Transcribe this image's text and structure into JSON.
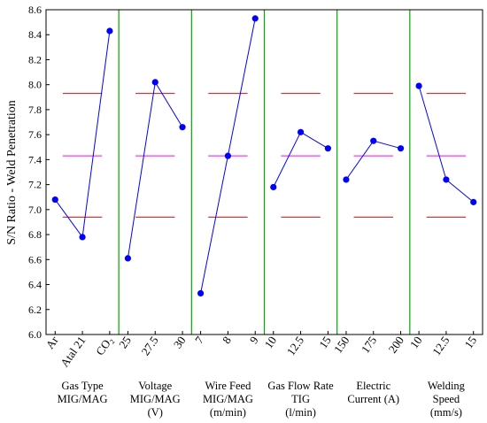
{
  "chart_data": {
    "type": "line",
    "ylabel": "S/N Ratio - Weld Penetration",
    "ylim": [
      6.0,
      8.6
    ],
    "yticks": [
      "6.0",
      "6.2",
      "6.4",
      "6.6",
      "6.8",
      "7.0",
      "7.2",
      "7.4",
      "7.6",
      "7.8",
      "8.0",
      "8.2",
      "8.4",
      "8.6"
    ],
    "reference_lines": {
      "upper": 7.93,
      "mean": 7.43,
      "lower": 6.94,
      "upper_color": "#ff0000",
      "mean_color": "#ff00ff",
      "lower_color": "#ff0000"
    },
    "series_color": "#0000ff",
    "divider_color": "#00aa00",
    "factors": [
      {
        "name_lines": [
          "Gas Type",
          "MIG/MAG"
        ],
        "levels": [
          "Ar",
          "Atal 21",
          "CO₂"
        ],
        "values": [
          7.08,
          6.78,
          8.43
        ]
      },
      {
        "name_lines": [
          "Voltage",
          "MIG/MAG",
          "(V)"
        ],
        "levels": [
          "25",
          "27.5",
          "30"
        ],
        "values": [
          6.61,
          8.02,
          7.66
        ]
      },
      {
        "name_lines": [
          "Wire Feed",
          "MIG/MAG",
          "(m/min)"
        ],
        "levels": [
          "7",
          "8",
          "9"
        ],
        "values": [
          6.33,
          7.43,
          8.53
        ]
      },
      {
        "name_lines": [
          "Gas Flow Rate",
          "TIG",
          "(l/min)"
        ],
        "levels": [
          "10",
          "12.5",
          "15"
        ],
        "values": [
          7.18,
          7.62,
          7.49
        ]
      },
      {
        "name_lines": [
          "Electric",
          "Current (A)"
        ],
        "levels": [
          "150",
          "175",
          "200"
        ],
        "values": [
          7.24,
          7.55,
          7.49
        ]
      },
      {
        "name_lines": [
          "Welding",
          "Speed",
          "(mm/s)"
        ],
        "levels": [
          "10",
          "12.5",
          "15"
        ],
        "values": [
          7.99,
          7.24,
          7.06
        ]
      }
    ]
  }
}
